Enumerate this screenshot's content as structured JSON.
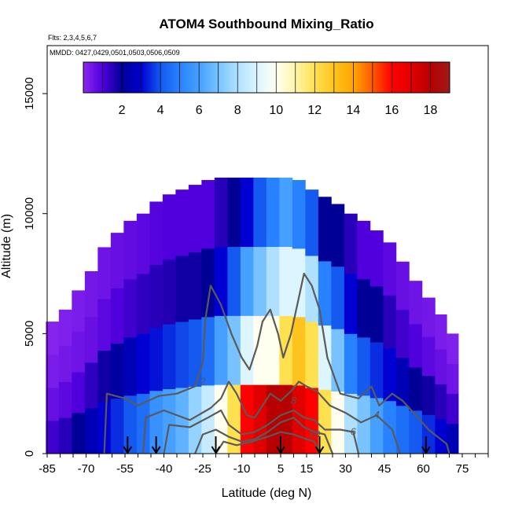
{
  "chart_data": {
    "type": "heatmap",
    "title": "ATOM4 Southbound Mixing_Ratio",
    "flights_label": "Flts: 2,3,4,5,6,7",
    "dates_label": "MMDD: 0427,0429,0501,0503,0506,0509",
    "xlabel": "Latitude (deg N)",
    "ylabel": "Altitude (m)",
    "xlim": [
      -85,
      85
    ],
    "ylim": [
      0,
      17000
    ],
    "x_ticks": [
      -85,
      -70,
      -55,
      -40,
      -25,
      -10,
      5,
      15,
      30,
      45,
      60,
      75
    ],
    "y_ticks": [
      0,
      5000,
      10000,
      15000
    ],
    "colorbar": {
      "range": [
        0,
        19
      ],
      "ticks": [
        2,
        4,
        6,
        8,
        10,
        12,
        14,
        16,
        18
      ],
      "placement": "top"
    },
    "contour_levels_labeled": [
      2,
      4,
      6,
      8,
      10
    ],
    "surface_arrows_lat": [
      -54,
      -43,
      -20,
      5,
      20,
      61
    ],
    "profiles": [
      {
        "lat": -83,
        "top": 5500,
        "values": [
          1.2,
          0.6,
          0.3,
          0.1
        ]
      },
      {
        "lat": -78,
        "top": 6000,
        "values": [
          1.5,
          0.8,
          0.4,
          0.2
        ]
      },
      {
        "lat": -73,
        "top": 6800,
        "values": [
          2.0,
          1.0,
          0.5,
          0.3
        ]
      },
      {
        "lat": -68,
        "top": 7600,
        "values": [
          2.5,
          1.4,
          0.6,
          0.4
        ]
      },
      {
        "lat": -63,
        "top": 8600,
        "values": [
          3.0,
          1.8,
          0.8,
          0.5
        ]
      },
      {
        "lat": -58,
        "top": 9200,
        "values": [
          3.5,
          2.2,
          1.0,
          0.6
        ]
      },
      {
        "lat": -53,
        "top": 9700,
        "values": [
          4.0,
          2.5,
          1.2,
          0.7
        ]
      },
      {
        "lat": -48,
        "top": 10000,
        "values": [
          4.5,
          3.0,
          1.4,
          0.8
        ]
      },
      {
        "lat": -43,
        "top": 10500,
        "values": [
          5.5,
          3.2,
          1.5,
          0.9
        ]
      },
      {
        "lat": -38,
        "top": 10800,
        "values": [
          6.0,
          3.5,
          1.6,
          1.0
        ]
      },
      {
        "lat": -33,
        "top": 11000,
        "values": [
          6.5,
          3.8,
          1.8,
          1.0
        ]
      },
      {
        "lat": -28,
        "top": 11200,
        "values": [
          7.5,
          4.0,
          1.8,
          1.0
        ]
      },
      {
        "lat": -23,
        "top": 11400,
        "values": [
          8.5,
          4.5,
          2.0,
          1.0
        ]
      },
      {
        "lat": -18,
        "top": 11500,
        "values": [
          10.0,
          6.0,
          3.0,
          1.5
        ]
      },
      {
        "lat": -13,
        "top": 11500,
        "values": [
          12.0,
          7.0,
          4.0,
          2.0
        ]
      },
      {
        "lat": -8,
        "top": 11500,
        "values": [
          16.0,
          9.0,
          6.0,
          3.0
        ]
      },
      {
        "lat": -3,
        "top": 11500,
        "values": [
          17.0,
          10.0,
          7.0,
          4.0
        ]
      },
      {
        "lat": 2,
        "top": 11500,
        "values": [
          18.0,
          10.0,
          8.0,
          5.0
        ]
      },
      {
        "lat": 7,
        "top": 11500,
        "values": [
          18.0,
          12.0,
          9.0,
          6.0
        ]
      },
      {
        "lat": 12,
        "top": 11400,
        "values": [
          17.0,
          13.0,
          9.0,
          5.0
        ]
      },
      {
        "lat": 17,
        "top": 11000,
        "values": [
          16.0,
          12.0,
          8.0,
          4.0
        ]
      },
      {
        "lat": 22,
        "top": 10700,
        "values": [
          12.0,
          9.0,
          5.0,
          2.0
        ]
      },
      {
        "lat": 27,
        "top": 10400,
        "values": [
          10.0,
          7.0,
          4.0,
          2.0
        ]
      },
      {
        "lat": 32,
        "top": 10000,
        "values": [
          8.0,
          5.0,
          3.0,
          1.5
        ]
      },
      {
        "lat": 37,
        "top": 9700,
        "values": [
          7.0,
          4.0,
          2.0,
          1.0
        ]
      },
      {
        "lat": 42,
        "top": 9300,
        "values": [
          6.0,
          3.5,
          2.0,
          1.0
        ]
      },
      {
        "lat": 47,
        "top": 8800,
        "values": [
          5.0,
          3.0,
          1.5,
          0.8
        ]
      },
      {
        "lat": 52,
        "top": 8000,
        "values": [
          4.5,
          2.5,
          1.2,
          0.6
        ]
      },
      {
        "lat": 57,
        "top": 7200,
        "values": [
          4.0,
          2.0,
          1.0,
          0.5
        ]
      },
      {
        "lat": 62,
        "top": 6500,
        "values": [
          3.5,
          1.8,
          0.8,
          0.4
        ]
      },
      {
        "lat": 67,
        "top": 5800,
        "values": [
          3.0,
          1.5,
          0.6,
          0.3
        ]
      },
      {
        "lat": 71,
        "top": 5000,
        "values": [
          2.5,
          1.2,
          0.5,
          0.2
        ]
      }
    ],
    "contours": [
      {
        "level": 2,
        "label_at": [
          3000,
          -25
        ],
        "points": [
          [
            -63,
            0
          ],
          [
            -62,
            2500
          ],
          [
            -55,
            2300
          ],
          [
            -50,
            2000
          ],
          [
            -42,
            2400
          ],
          [
            -35,
            2500
          ],
          [
            -28,
            2800
          ],
          [
            -25,
            3800
          ],
          [
            -24,
            5600
          ],
          [
            -22,
            7000
          ],
          [
            -18,
            6200
          ],
          [
            -14,
            5000
          ],
          [
            -10,
            4000
          ],
          [
            -7,
            3500
          ],
          [
            -4,
            4500
          ],
          [
            -2,
            5500
          ],
          [
            1,
            6000
          ],
          [
            4,
            5000
          ],
          [
            6,
            4000
          ],
          [
            9,
            5000
          ],
          [
            12,
            6500
          ],
          [
            14,
            7500
          ],
          [
            17,
            7000
          ],
          [
            20,
            6000
          ],
          [
            23,
            4000
          ],
          [
            28,
            2500
          ],
          [
            35,
            2300
          ],
          [
            40,
            2800
          ],
          [
            43,
            2000
          ],
          [
            48,
            2500
          ],
          [
            52,
            2200
          ],
          [
            58,
            1500
          ],
          [
            62,
            1000
          ],
          [
            69,
            400
          ],
          [
            70,
            0
          ]
        ]
      },
      {
        "level": 4,
        "label_at": [
          1600,
          42
        ],
        "points": [
          [
            -48,
            0
          ],
          [
            -47,
            1500
          ],
          [
            -40,
            1800
          ],
          [
            -30,
            1400
          ],
          [
            -22,
            1900
          ],
          [
            -18,
            2300
          ],
          [
            -15,
            3000
          ],
          [
            -12,
            2500
          ],
          [
            -8,
            1600
          ],
          [
            -5,
            1500
          ],
          [
            -2,
            2000
          ],
          [
            1,
            2500
          ],
          [
            5,
            2200
          ],
          [
            9,
            2600
          ],
          [
            12,
            3000
          ],
          [
            15,
            2800
          ],
          [
            19,
            2600
          ],
          [
            24,
            2000
          ],
          [
            30,
            1700
          ],
          [
            36,
            1300
          ],
          [
            42,
            1600
          ],
          [
            48,
            1000
          ],
          [
            51,
            0
          ]
        ]
      },
      {
        "level": 6,
        "label_at": [
          900,
          33
        ],
        "points": [
          [
            -40,
            0
          ],
          [
            -38,
            1200
          ],
          [
            -30,
            1100
          ],
          [
            -23,
            1500
          ],
          [
            -18,
            1800
          ],
          [
            -15,
            1200
          ],
          [
            -10,
            800
          ],
          [
            -5,
            900
          ],
          [
            0,
            1200
          ],
          [
            5,
            1600
          ],
          [
            10,
            1800
          ],
          [
            14,
            1500
          ],
          [
            18,
            1400
          ],
          [
            22,
            1000
          ],
          [
            28,
            1000
          ],
          [
            33,
            900
          ],
          [
            35,
            0
          ]
        ]
      },
      {
        "level": 8,
        "label_at": [
          2200,
          10
        ],
        "points": [
          [
            -28,
            0
          ],
          [
            -25,
            800
          ],
          [
            -20,
            1000
          ],
          [
            -15,
            700
          ],
          [
            -10,
            500
          ],
          [
            -5,
            600
          ],
          [
            0,
            900
          ],
          [
            5,
            1300
          ],
          [
            10,
            1500
          ],
          [
            14,
            1100
          ],
          [
            18,
            900
          ],
          [
            22,
            800
          ],
          [
            25,
            0
          ]
        ]
      },
      {
        "level": 10,
        "label_at": [
          800,
          18
        ],
        "points": [
          [
            -20,
            0
          ],
          [
            -17,
            500
          ],
          [
            -12,
            350
          ],
          [
            -6,
            500
          ],
          [
            0,
            700
          ],
          [
            5,
            900
          ],
          [
            10,
            800
          ],
          [
            15,
            600
          ],
          [
            18,
            500
          ],
          [
            20,
            0
          ]
        ]
      }
    ]
  }
}
